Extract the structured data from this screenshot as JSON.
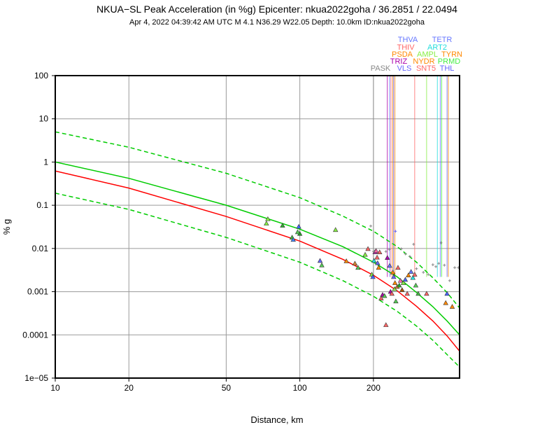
{
  "chart_data": {
    "type": "scatter",
    "title": "NKUA−SL Peak Acceleration (in %g) Epicenter: nkua2022goha / 36.2851 / 22.0494",
    "subtitle": "Apr  4, 2022 04:39:42 AM UTC   M 4.1   N36.29 W22.05   Depth: 10.0km   ID:nkua2022goha",
    "xlabel": "Distance, km",
    "ylabel": "% g",
    "x_scale": "log",
    "y_scale": "log",
    "xlim": [
      10,
      450
    ],
    "ylim": [
      1e-05,
      100
    ],
    "grid": true,
    "x_ticks": [
      {
        "value": 10,
        "label": "10"
      },
      {
        "value": 20,
        "label": "20"
      },
      {
        "value": 50,
        "label": "50"
      },
      {
        "value": 100,
        "label": "100"
      },
      {
        "value": 200,
        "label": "200"
      }
    ],
    "y_ticks": [
      {
        "value": 100,
        "label": "100"
      },
      {
        "value": 10,
        "label": "10"
      },
      {
        "value": 1,
        "label": "1"
      },
      {
        "value": 0.1,
        "label": "0.1"
      },
      {
        "value": 0.01,
        "label": "0.01"
      },
      {
        "value": 0.001,
        "label": "0.001"
      },
      {
        "value": 0.0001,
        "label": "0.0001"
      },
      {
        "value": 1e-05,
        "label": "1e−05"
      }
    ],
    "curves": [
      {
        "name": "prediction-upper",
        "color": "#00cc00",
        "style": "dashed",
        "points": [
          [
            10,
            5.0
          ],
          [
            20,
            2.2
          ],
          [
            50,
            0.55
          ],
          [
            100,
            0.15
          ],
          [
            150,
            0.056
          ],
          [
            200,
            0.025
          ],
          [
            250,
            0.011
          ],
          [
            300,
            0.0048
          ],
          [
            350,
            0.0021
          ],
          [
            400,
            0.00095
          ],
          [
            450,
            0.00042
          ]
        ]
      },
      {
        "name": "prediction-reference",
        "color": "#00cc00",
        "style": "solid",
        "points": [
          [
            10,
            1.0
          ],
          [
            20,
            0.42
          ],
          [
            50,
            0.1
          ],
          [
            100,
            0.028
          ],
          [
            150,
            0.011
          ],
          [
            200,
            0.0048
          ],
          [
            250,
            0.0022
          ],
          [
            300,
            0.00096
          ],
          [
            350,
            0.00045
          ],
          [
            400,
            0.00021
          ],
          [
            450,
            0.0001
          ]
        ]
      },
      {
        "name": "prediction-median",
        "color": "#ff0000",
        "style": "solid",
        "points": [
          [
            10,
            0.62
          ],
          [
            20,
            0.25
          ],
          [
            50,
            0.055
          ],
          [
            100,
            0.0148
          ],
          [
            150,
            0.0056
          ],
          [
            200,
            0.0024
          ],
          [
            250,
            0.00105
          ],
          [
            300,
            0.00046
          ],
          [
            350,
            0.00021
          ],
          [
            400,
            9.5e-05
          ],
          [
            450,
            4.2e-05
          ]
        ]
      },
      {
        "name": "prediction-lower",
        "color": "#00cc00",
        "style": "dashed",
        "points": [
          [
            10,
            0.19
          ],
          [
            20,
            0.08
          ],
          [
            50,
            0.018
          ],
          [
            100,
            0.0048
          ],
          [
            150,
            0.0018
          ],
          [
            200,
            0.00078
          ],
          [
            250,
            0.00035
          ],
          [
            300,
            0.00016
          ],
          [
            350,
            7.5e-05
          ],
          [
            400,
            3.5e-05
          ],
          [
            450,
            1.8e-05
          ]
        ]
      }
    ],
    "stations": [
      {
        "name": "PASK",
        "color": "#888888",
        "distance": 200
      },
      {
        "name": "THVA",
        "color": "#6677ff",
        "distance": 233
      },
      {
        "name": "THIV",
        "color": "#ff6666",
        "distance": 236
      },
      {
        "name": "PSDA",
        "color": "#ff8800",
        "distance": 240
      },
      {
        "name": "TRIZ",
        "color": "#aa00aa",
        "distance": 228
      },
      {
        "name": "VLS",
        "color": "#6666ff",
        "distance": 242
      },
      {
        "name": "NYDR",
        "color": "#ff8800",
        "distance": 245
      },
      {
        "name": "SNT5",
        "color": "#ff6666",
        "distance": 295
      },
      {
        "name": "AMPL",
        "color": "#88ee44",
        "distance": 330
      },
      {
        "name": "ART2",
        "color": "#22dddd",
        "distance": 365
      },
      {
        "name": "PRMD",
        "color": "#44ee44",
        "distance": 380
      },
      {
        "name": "THL",
        "color": "#6666ff",
        "distance": 400
      },
      {
        "name": "TETR",
        "color": "#6677ff",
        "distance": 375
      },
      {
        "name": "TYRN",
        "color": "#ff8800",
        "distance": 405
      }
    ],
    "observations": [
      {
        "distance": 73,
        "pga": 0.038,
        "color": "#88ee44",
        "marker": "triangle"
      },
      {
        "distance": 74,
        "pga": 0.048,
        "color": "#88ee44",
        "marker": "triangle"
      },
      {
        "distance": 85,
        "pga": 0.034,
        "color": "#33aa33",
        "marker": "triangle"
      },
      {
        "distance": 93,
        "pga": 0.018,
        "color": "#44bb44",
        "marker": "triangle"
      },
      {
        "distance": 94,
        "pga": 0.016,
        "color": "#4488ff",
        "marker": "triangle"
      },
      {
        "distance": 99,
        "pga": 0.032,
        "color": "#4466ff",
        "marker": "triangle"
      },
      {
        "distance": 100,
        "pga": 0.022,
        "color": "#22aa22",
        "marker": "triangle"
      },
      {
        "distance": 98,
        "pga": 0.024,
        "color": "#55cc55",
        "marker": "triangle"
      },
      {
        "distance": 121,
        "pga": 0.0052,
        "color": "#6666ff",
        "marker": "triangle"
      },
      {
        "distance": 123,
        "pga": 0.0041,
        "color": "#55cc55",
        "marker": "triangle"
      },
      {
        "distance": 140,
        "pga": 0.027,
        "color": "#88ee44",
        "marker": "triangle"
      },
      {
        "distance": 155,
        "pga": 0.0051,
        "color": "#ff8800",
        "marker": "triangle"
      },
      {
        "distance": 168,
        "pga": 0.0045,
        "color": "#dd8833",
        "marker": "triangle"
      },
      {
        "distance": 173,
        "pga": 0.0036,
        "color": "#55cc55",
        "marker": "triangle"
      },
      {
        "distance": 185,
        "pga": 0.0072,
        "color": "#88ee44",
        "marker": "triangle"
      },
      {
        "distance": 190,
        "pga": 0.0098,
        "color": "#ff6666",
        "marker": "triangle"
      },
      {
        "distance": 197,
        "pga": 0.0025,
        "color": "#88ee44",
        "marker": "triangle"
      },
      {
        "distance": 199,
        "pga": 0.0022,
        "color": "#4466ff",
        "marker": "triangle"
      },
      {
        "distance": 201,
        "pga": 0.0052,
        "color": "#22dddd",
        "marker": "triangle"
      },
      {
        "distance": 203,
        "pga": 0.0083,
        "color": "#aa00aa",
        "marker": "triangle"
      },
      {
        "distance": 205,
        "pga": 0.0088,
        "color": "#ff66aa",
        "marker": "triangle"
      },
      {
        "distance": 207,
        "pga": 0.0062,
        "color": "#ff6666",
        "marker": "triangle"
      },
      {
        "distance": 208,
        "pga": 0.0046,
        "color": "#6666ff",
        "marker": "triangle"
      },
      {
        "distance": 210,
        "pga": 0.0036,
        "color": "#ff8800",
        "marker": "triangle"
      },
      {
        "distance": 212,
        "pga": 0.0082,
        "color": "#ff6666",
        "marker": "triangle"
      },
      {
        "distance": 215,
        "pga": 0.0007,
        "color": "#ff6666",
        "marker": "triangle"
      },
      {
        "distance": 218,
        "pga": 0.00085,
        "color": "#aa00aa",
        "marker": "triangle"
      },
      {
        "distance": 222,
        "pga": 0.0008,
        "color": "#55cc55",
        "marker": "triangle"
      },
      {
        "distance": 225,
        "pga": 0.00017,
        "color": "#ff6666",
        "marker": "triangle"
      },
      {
        "distance": 228,
        "pga": 0.0061,
        "color": "#aa00aa",
        "marker": "triangle"
      },
      {
        "distance": 233,
        "pga": 0.004,
        "color": "#6677ff",
        "marker": "triangle"
      },
      {
        "distance": 235,
        "pga": 0.001,
        "color": "#aa00aa",
        "marker": "triangle"
      },
      {
        "distance": 238,
        "pga": 0.0009,
        "color": "#ff6666",
        "marker": "triangle"
      },
      {
        "distance": 240,
        "pga": 0.0028,
        "color": "#ff8800",
        "marker": "triangle"
      },
      {
        "distance": 242,
        "pga": 0.0022,
        "color": "#6666ff",
        "marker": "triangle"
      },
      {
        "distance": 244,
        "pga": 0.00115,
        "color": "#88ee44",
        "marker": "triangle"
      },
      {
        "distance": 245,
        "pga": 0.0016,
        "color": "#ff8800",
        "marker": "triangle"
      },
      {
        "distance": 247,
        "pga": 0.0006,
        "color": "#55cc55",
        "marker": "triangle"
      },
      {
        "distance": 250,
        "pga": 0.0013,
        "color": "#dd8833",
        "marker": "triangle"
      },
      {
        "distance": 252,
        "pga": 0.0036,
        "color": "#ff6666",
        "marker": "triangle"
      },
      {
        "distance": 255,
        "pga": 0.0014,
        "color": "#22aa22",
        "marker": "triangle"
      },
      {
        "distance": 258,
        "pga": 0.0018,
        "color": "#ff66aa",
        "marker": "triangle"
      },
      {
        "distance": 262,
        "pga": 0.0011,
        "color": "#aa5500",
        "marker": "triangle"
      },
      {
        "distance": 265,
        "pga": 0.0016,
        "color": "#88ee44",
        "marker": "triangle"
      },
      {
        "distance": 270,
        "pga": 0.0019,
        "color": "#4466ff",
        "marker": "triangle"
      },
      {
        "distance": 275,
        "pga": 0.0009,
        "color": "#ff6666",
        "marker": "triangle"
      },
      {
        "distance": 278,
        "pga": 0.0024,
        "color": "#ff8800",
        "marker": "triangle"
      },
      {
        "distance": 285,
        "pga": 0.0029,
        "color": "#6677ff",
        "marker": "triangle"
      },
      {
        "distance": 290,
        "pga": 0.0021,
        "color": "#22dddd",
        "marker": "triangle"
      },
      {
        "distance": 295,
        "pga": 0.0025,
        "color": "#ff6666",
        "marker": "triangle"
      },
      {
        "distance": 298,
        "pga": 0.0014,
        "color": "#55cc55",
        "marker": "triangle"
      },
      {
        "distance": 305,
        "pga": 0.0009,
        "color": "#44bb44",
        "marker": "triangle"
      },
      {
        "distance": 330,
        "pga": 0.0009,
        "color": "#ff6666",
        "marker": "triangle"
      },
      {
        "distance": 395,
        "pga": 0.00055,
        "color": "#ff8800",
        "marker": "triangle"
      },
      {
        "distance": 400,
        "pga": 0.0009,
        "color": "#4466ff",
        "marker": "triangle"
      },
      {
        "distance": 420,
        "pga": 0.00045,
        "color": "#ff8800",
        "marker": "triangle"
      },
      {
        "distance": 195,
        "pga": 0.033,
        "color": "#888888",
        "marker": "cross"
      },
      {
        "distance": 200,
        "pga": 0.0085,
        "color": "#888888",
        "marker": "cross"
      },
      {
        "distance": 225,
        "pga": 0.0085,
        "color": "#888888",
        "marker": "cross"
      },
      {
        "distance": 232,
        "pga": 0.0095,
        "color": "#888888",
        "marker": "cross"
      },
      {
        "distance": 246,
        "pga": 0.025,
        "color": "#6666ff",
        "marker": "cross"
      },
      {
        "distance": 260,
        "pga": 0.0098,
        "color": "#888888",
        "marker": "cross"
      },
      {
        "distance": 270,
        "pga": 0.0075,
        "color": "#888888",
        "marker": "cross"
      },
      {
        "distance": 282,
        "pga": 0.0065,
        "color": "#888888",
        "marker": "cross"
      },
      {
        "distance": 292,
        "pga": 0.0125,
        "color": "#888888",
        "marker": "cross"
      },
      {
        "distance": 300,
        "pga": 0.0034,
        "color": "#888888",
        "marker": "cross"
      },
      {
        "distance": 320,
        "pga": 0.0028,
        "color": "#888888",
        "marker": "cross"
      },
      {
        "distance": 335,
        "pga": 0.0025,
        "color": "#888888",
        "marker": "cross"
      },
      {
        "distance": 350,
        "pga": 0.0042,
        "color": "#888888",
        "marker": "cross"
      },
      {
        "distance": 360,
        "pga": 0.0038,
        "color": "#888888",
        "marker": "cross"
      },
      {
        "distance": 370,
        "pga": 0.0045,
        "color": "#888888",
        "marker": "cross"
      },
      {
        "distance": 378,
        "pga": 0.0135,
        "color": "#888888",
        "marker": "cross"
      },
      {
        "distance": 390,
        "pga": 0.0041,
        "color": "#888888",
        "marker": "cross"
      },
      {
        "distance": 410,
        "pga": 0.0018,
        "color": "#888888",
        "marker": "cross"
      },
      {
        "distance": 430,
        "pga": 0.0036,
        "color": "#888888",
        "marker": "cross"
      },
      {
        "distance": 445,
        "pga": 0.0036,
        "color": "#888888",
        "marker": "cross"
      }
    ]
  }
}
